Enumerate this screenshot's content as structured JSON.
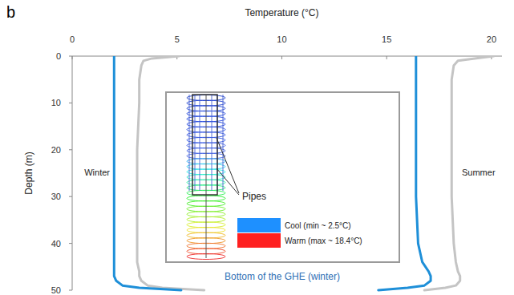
{
  "chart_data": {
    "type": "line",
    "panel": "b",
    "x_label": "Temperature (°C)",
    "y_label": "Depth (m)",
    "xlim": [
      0,
      20.5
    ],
    "xticks": [
      0,
      5,
      10,
      15,
      20
    ],
    "ylim": [
      0,
      50
    ],
    "yticks": [
      0,
      10,
      20,
      30,
      40,
      50
    ],
    "y": [
      0,
      0.5,
      1,
      2,
      5,
      10,
      20,
      30,
      40,
      44,
      46,
      47,
      48,
      49,
      49.5,
      50
    ],
    "series": [
      {
        "color": "#c4c4c4",
        "values": [
          5.1,
          3.8,
          3.4,
          3.3,
          3.2,
          3.2,
          3.1,
          3.1,
          3.1,
          3.1,
          3.2,
          3.2,
          3.3,
          3.6,
          4.3,
          6.3
        ]
      },
      {
        "color": "#c4c4c4",
        "values": [
          20.1,
          19.2,
          18.4,
          18.2,
          18.1,
          18.1,
          18.1,
          18.1,
          18.2,
          18.3,
          18.4,
          18.5,
          18.5,
          18.3,
          17.8,
          16.8
        ]
      },
      {
        "color": "#1e8fd8",
        "values": [
          2.0,
          2.0,
          2.0,
          2.0,
          2.0,
          2.0,
          2.0,
          2.0,
          2.0,
          2.0,
          2.0,
          2.0,
          2.1,
          2.4,
          3.2,
          5.2
        ]
      },
      {
        "color": "#1e8fd8",
        "values": [
          16.4,
          16.4,
          16.4,
          16.4,
          16.4,
          16.4,
          16.4,
          16.4,
          16.5,
          16.7,
          17.0,
          17.1,
          17.1,
          16.8,
          16.0,
          14.6
        ]
      }
    ],
    "annotations": [
      "Winter",
      "Summer"
    ],
    "inset": {
      "label": "Pipes",
      "legend": [
        {
          "text": "Cool (min ~ 2.5°C)",
          "color": "#1e90ff"
        },
        {
          "text": "Warm (max ~ 18.4°C)",
          "color": "#ff2020"
        }
      ],
      "caption": "Bottom of the GHE (winter)"
    }
  }
}
